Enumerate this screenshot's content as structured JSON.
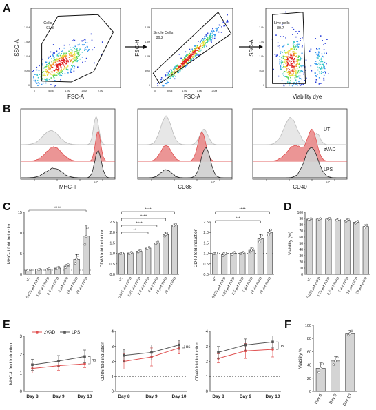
{
  "panel_labels": [
    "A",
    "B",
    "C",
    "D",
    "E",
    "F"
  ],
  "colors": {
    "gray_fill": "#cfcfcf",
    "red": "#e05050",
    "red_fill": "#e98a8a",
    "light_gray": "#e4e4e4",
    "dark_gray": "#555555",
    "bar_fill": "#d4d4d4"
  },
  "flow": {
    "plots": [
      {
        "xlabel": "FSC-A",
        "ylabel": "SSC-A",
        "gate_label": "Cells",
        "gate_value": "93.3",
        "ticks_x": [
          "0",
          "500k",
          "1.0M",
          "1.5M",
          "2.0M"
        ],
        "ticks_y": [
          "0",
          "500k",
          "1.0M",
          "1.5M",
          "2.0M"
        ]
      },
      {
        "xlabel": "FSC-A",
        "ylabel": "FSC-H",
        "gate_label": "Single Cells",
        "gate_value": "86.2",
        "ticks_x": [
          "0",
          "500k",
          "1.0M",
          "1.5M",
          "2.0M"
        ],
        "ticks_y": [
          "0",
          "500k",
          "1.0M",
          "1.5M",
          "2.0M"
        ]
      },
      {
        "xlabel": "Viability dye",
        "ylabel": "SSC-A",
        "gate_label": "Live cells",
        "gate_value": "89.7",
        "ticks_x": [
          "",
          "",
          "",
          ""
        ],
        "ticks_y": [
          "0",
          "500k",
          "1.0M",
          "1.5M",
          "2.0M"
        ]
      }
    ]
  },
  "histograms": {
    "markers": [
      "MHC-II",
      "CD86",
      "CD40"
    ],
    "conditions": [
      "UT",
      "zVAD",
      "LPS"
    ],
    "tick_labels": [
      "10³",
      "10⁴",
      "10⁵",
      "10⁶"
    ]
  },
  "chart_data": [
    {
      "type": "bar",
      "ylabel": "MHC-II fold induction",
      "ylim": [
        0,
        15
      ],
      "yticks": [
        0,
        5,
        10,
        15
      ],
      "categories": [
        "UT",
        "0.625 µM zVAD",
        "1.25 µM zVAD",
        "2.5 µM zVAD",
        "5 µM zVAD",
        "10 µM zVAD",
        "20 µM zVAD"
      ],
      "values": [
        1.0,
        1.1,
        1.2,
        1.5,
        2.0,
        3.6,
        9.2
      ],
      "errors": [
        0.1,
        0.15,
        0.2,
        0.3,
        0.4,
        1.2,
        2.5
      ],
      "sig": [
        {
          "from": 0,
          "to": 6,
          "label": "****"
        }
      ]
    },
    {
      "type": "bar",
      "ylabel": "CD86 fold induction",
      "ylim": [
        0,
        2.5
      ],
      "yticks": [
        0,
        0.5,
        1.0,
        1.5,
        2.0,
        2.5
      ],
      "categories": [
        "UT",
        "0.625 µM zVAD",
        "1.25 µM zVAD",
        "2.5 µM zVAD",
        "5 µM zVAD",
        "10 µM zVAD",
        "20 µM zVAD"
      ],
      "values": [
        1.0,
        1.02,
        1.1,
        1.25,
        1.5,
        1.9,
        2.35
      ],
      "errors": [
        0.02,
        0.05,
        0.05,
        0.05,
        0.05,
        0.1,
        0.05
      ],
      "sig": [
        {
          "from": 0,
          "to": 6,
          "label": "****"
        },
        {
          "from": 0,
          "to": 5,
          "label": "****"
        },
        {
          "from": 0,
          "to": 4,
          "label": "****"
        },
        {
          "from": 0,
          "to": 3,
          "label": "**"
        }
      ]
    },
    {
      "type": "bar",
      "ylabel": "CD40 fold induction",
      "ylim": [
        0,
        2.5
      ],
      "yticks": [
        0,
        0.5,
        1.0,
        1.5,
        2.0,
        2.5
      ],
      "categories": [
        "UT",
        "0.625 µM zVAD",
        "1.25 µM zVAD",
        "2.5 µM zVAD",
        "5 µM zVAD",
        "10 µM zVAD",
        "20 µM zVAD"
      ],
      "values": [
        1.0,
        0.95,
        1.0,
        1.02,
        1.15,
        1.7,
        2.0
      ],
      "errors": [
        0.02,
        0.08,
        0.06,
        0.05,
        0.1,
        0.2,
        0.15
      ],
      "sig": [
        {
          "from": 0,
          "to": 6,
          "label": "****"
        },
        {
          "from": 0,
          "to": 5,
          "label": "***"
        }
      ]
    },
    {
      "type": "bar",
      "ylabel": "Viability (%)",
      "ylim": [
        0,
        100
      ],
      "yticks": [
        0,
        10,
        20,
        30,
        40,
        50,
        60,
        70,
        80,
        90,
        100
      ],
      "categories": [
        "UT",
        "0.625 µM zVAD",
        "1.25 µM zVAD",
        "2.5 µM zVAD",
        "5 µM zVAD",
        "10 µM zVAD",
        "20 µM zVAD"
      ],
      "values": [
        89,
        89,
        89,
        88,
        87,
        84,
        77
      ],
      "errors": [
        1,
        1,
        1.5,
        1,
        2,
        2,
        3
      ],
      "sig": []
    },
    {
      "type": "line",
      "ylabel": "MHC-II fold induction",
      "ylim": [
        0,
        3
      ],
      "yticks": [
        0,
        1,
        2,
        3
      ],
      "x": [
        "Day 8",
        "Day 9",
        "Day 10"
      ],
      "series": [
        {
          "name": "zVAD",
          "values": [
            1.25,
            1.4,
            1.5
          ],
          "errors": [
            0.25,
            0.25,
            0.2
          ]
        },
        {
          "name": "LPS",
          "values": [
            1.45,
            1.65,
            1.9
          ],
          "errors": [
            0.3,
            0.3,
            0.35
          ]
        }
      ],
      "sig_label": "ns"
    },
    {
      "type": "line",
      "ylabel": "CD86 fold induction",
      "ylim": [
        0,
        4
      ],
      "yticks": [
        0,
        1,
        2,
        3,
        4
      ],
      "x": [
        "Day 8",
        "Day 9",
        "Day 10"
      ],
      "series": [
        {
          "name": "zVAD",
          "values": [
            2.0,
            2.3,
            2.9
          ],
          "errors": [
            0.5,
            0.6,
            0.4
          ]
        },
        {
          "name": "LPS",
          "values": [
            2.4,
            2.6,
            3.1
          ],
          "errors": [
            0.4,
            0.5,
            0.3
          ]
        }
      ],
      "sig_label": "ns"
    },
    {
      "type": "line",
      "ylabel": "CD40 fold induction",
      "ylim": [
        0,
        4
      ],
      "yticks": [
        0,
        1,
        2,
        3,
        4
      ],
      "x": [
        "Day 8",
        "Day 9",
        "Day 10"
      ],
      "series": [
        {
          "name": "zVAD",
          "values": [
            2.2,
            2.7,
            2.8
          ],
          "errors": [
            0.3,
            0.5,
            0.5
          ]
        },
        {
          "name": "LPS",
          "values": [
            2.6,
            3.1,
            3.3
          ],
          "errors": [
            0.4,
            0.4,
            0.4
          ]
        }
      ],
      "sig_label": "ns"
    },
    {
      "type": "bar",
      "ylabel": "Viability %",
      "ylim": [
        0,
        100
      ],
      "yticks": [
        0,
        20,
        40,
        60,
        80,
        100
      ],
      "categories": [
        "Day 8",
        "Day 9",
        "Day 10"
      ],
      "values": [
        35,
        46,
        88
      ],
      "errors": [
        8,
        7,
        4
      ],
      "sig": []
    }
  ]
}
